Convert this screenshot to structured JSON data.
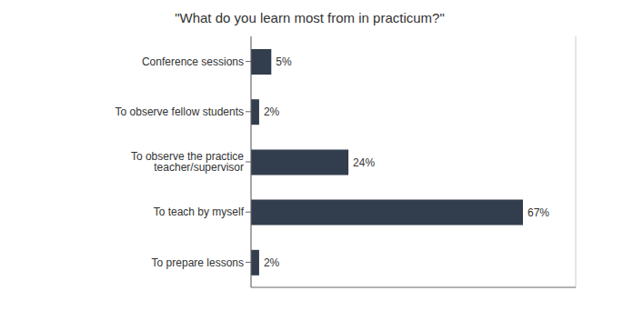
{
  "chart_data": {
    "type": "bar",
    "orientation": "horizontal",
    "title": "\"What do you learn most from in practicum?\"",
    "categories": [
      "To prepare lessons",
      "To teach by myself",
      "To observe the practice teacher/supervisor",
      "To observe fellow students",
      "Conference sessions"
    ],
    "values": [
      2,
      67,
      24,
      2,
      5
    ],
    "value_labels": [
      "2%",
      "67%",
      "24%",
      "2%",
      "5%"
    ],
    "data_labels": true,
    "color": "#323d4d",
    "xlim": [
      0,
      80
    ],
    "xticks": [
      0,
      10,
      20,
      30,
      40,
      50,
      60,
      70,
      80
    ],
    "grid": true,
    "tick_labels": "y"
  }
}
